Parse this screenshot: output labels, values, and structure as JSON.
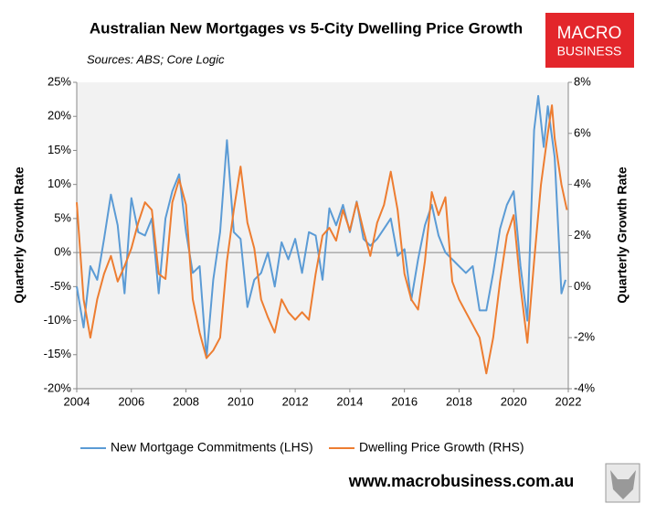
{
  "chart_data": {
    "type": "line",
    "title": "Australian New Mortgages vs 5-City Dwelling Price Growth",
    "subtitle": "Sources: ABS; Core Logic",
    "ylabel": "Quarterly  Growth Rate",
    "y2label": "Quarterly Growth Rate",
    "xlim": [
      2004,
      2022
    ],
    "xticks": [
      2004,
      2006,
      2008,
      2010,
      2012,
      2014,
      2016,
      2018,
      2020,
      2022
    ],
    "ylim": [
      -20,
      25
    ],
    "yticks": [
      {
        "value": -20,
        "label": "-20%"
      },
      {
        "value": -15,
        "label": "-15%"
      },
      {
        "value": -10,
        "label": "-10%"
      },
      {
        "value": -5,
        "label": "-5%"
      },
      {
        "value": 0,
        "label": "0%"
      },
      {
        "value": 5,
        "label": "5%"
      },
      {
        "value": 10,
        "label": "10%"
      },
      {
        "value": 15,
        "label": "15%"
      },
      {
        "value": 20,
        "label": "20%"
      },
      {
        "value": 25,
        "label": "25%"
      }
    ],
    "y2lim": [
      -4,
      8
    ],
    "y2ticks": [
      {
        "value": -4,
        "label": "-4%"
      },
      {
        "value": -2,
        "label": "-2%"
      },
      {
        "value": 0,
        "label": "0%"
      },
      {
        "value": 2,
        "label": "2%"
      },
      {
        "value": 4,
        "label": "4%"
      },
      {
        "value": 6,
        "label": "6%"
      },
      {
        "value": 8,
        "label": "8%"
      }
    ],
    "legend": "bottom",
    "series": [
      {
        "name": "New Mortgage Commitments (LHS)",
        "color": "#5b9bd5",
        "axis": "y",
        "x": [
          2004,
          2004.25,
          2004.5,
          2004.75,
          2005,
          2005.25,
          2005.5,
          2005.75,
          2006,
          2006.25,
          2006.5,
          2006.75,
          2007,
          2007.25,
          2007.5,
          2007.75,
          2008,
          2008.25,
          2008.5,
          2008.75,
          2009,
          2009.25,
          2009.5,
          2009.75,
          2010,
          2010.25,
          2010.5,
          2010.75,
          2011,
          2011.25,
          2011.5,
          2011.75,
          2012,
          2012.25,
          2012.5,
          2012.75,
          2013,
          2013.25,
          2013.5,
          2013.75,
          2014,
          2014.25,
          2014.5,
          2014.75,
          2015,
          2015.25,
          2015.5,
          2015.75,
          2016,
          2016.25,
          2016.5,
          2016.75,
          2017,
          2017.25,
          2017.5,
          2017.75,
          2018,
          2018.25,
          2018.5,
          2018.75,
          2019,
          2019.25,
          2019.5,
          2019.75,
          2020,
          2020.25,
          2020.5,
          2020.75,
          2020.9,
          2021.1,
          2021.25,
          2021.5,
          2021.75,
          2021.9
        ],
        "values": [
          -5,
          -11,
          -2,
          -4,
          2,
          8.5,
          4,
          -6,
          8,
          3,
          2.5,
          5,
          -6,
          5,
          9,
          11.5,
          3,
          -3,
          -2,
          -15.5,
          -4,
          3,
          16.5,
          3,
          2,
          -8,
          -4,
          -3,
          0,
          -5,
          1.5,
          -1,
          2,
          -3,
          3,
          2.5,
          -4,
          6.5,
          4,
          7,
          3,
          7.5,
          2,
          1,
          2,
          3.5,
          5,
          -0.5,
          0.5,
          -7,
          -1,
          4,
          7,
          2.5,
          0,
          -1,
          -2,
          -3,
          -2,
          -8.5,
          -8.5,
          -3,
          3.5,
          7,
          9,
          -2,
          -10,
          18,
          23,
          15.5,
          21.5,
          14,
          -6,
          -4
        ]
      },
      {
        "name": "Dwelling Price Growth (RHS)",
        "color": "#ed7d31",
        "axis": "y2",
        "x": [
          2004,
          2004.25,
          2004.5,
          2004.75,
          2005,
          2005.25,
          2005.5,
          2005.75,
          2006,
          2006.25,
          2006.5,
          2006.75,
          2007,
          2007.25,
          2007.5,
          2007.75,
          2008,
          2008.25,
          2008.5,
          2008.75,
          2009,
          2009.25,
          2009.5,
          2009.75,
          2010,
          2010.25,
          2010.5,
          2010.75,
          2011,
          2011.25,
          2011.5,
          2011.75,
          2012,
          2012.25,
          2012.5,
          2012.75,
          2013,
          2013.25,
          2013.5,
          2013.75,
          2014,
          2014.25,
          2014.5,
          2014.75,
          2015,
          2015.25,
          2015.5,
          2015.75,
          2016,
          2016.25,
          2016.5,
          2016.75,
          2017,
          2017.25,
          2017.5,
          2017.75,
          2018,
          2018.25,
          2018.5,
          2018.75,
          2019,
          2019.25,
          2019.5,
          2019.75,
          2020,
          2020.25,
          2020.5,
          2020.75,
          2021,
          2021.25,
          2021.4,
          2021.5,
          2021.75,
          2021.95
        ],
        "values": [
          3.3,
          -0.5,
          -2,
          -0.5,
          0.5,
          1.2,
          0.2,
          0.8,
          1.5,
          2.5,
          3.3,
          3,
          0.5,
          0.3,
          3.3,
          4.2,
          3.2,
          -0.5,
          -1.8,
          -2.8,
          -2.5,
          -2,
          1,
          3,
          4.7,
          2.5,
          1.5,
          -0.5,
          -1.2,
          -1.8,
          -0.5,
          -1,
          -1.3,
          -1,
          -1.3,
          0.5,
          2,
          2.3,
          1.8,
          3,
          2.2,
          3.3,
          2.2,
          1.2,
          2.5,
          3.2,
          4.5,
          3,
          0.5,
          -0.5,
          -0.9,
          1,
          3.7,
          2.8,
          3.5,
          0.2,
          -0.5,
          -1,
          -1.5,
          -2,
          -3.4,
          -2,
          0.2,
          2,
          2.8,
          0,
          -2.2,
          1,
          4,
          6,
          7.1,
          5.8,
          4,
          3
        ]
      }
    ]
  },
  "branding": {
    "logo_top": "MACRO",
    "logo_bottom": "BUSINESS",
    "website": "www.macrobusiness.com.au"
  }
}
